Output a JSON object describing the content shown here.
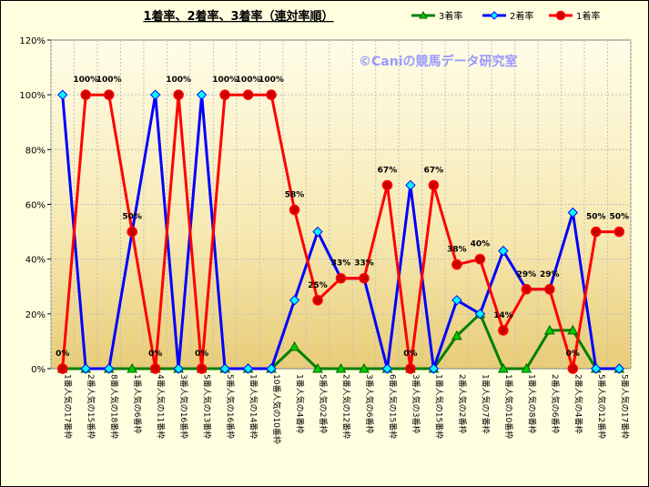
{
  "chart_data": {
    "type": "line",
    "title": "1着率、2着率、3着率（連対率順）",
    "watermark": "©Caniの競馬データ研究室",
    "ylim": [
      0,
      120
    ],
    "yticks": [
      "0%",
      "20%",
      "40%",
      "60%",
      "80%",
      "100%",
      "120%"
    ],
    "legend_position": "top-right",
    "grid": true,
    "categories": [
      "1番人気の17番枠",
      "2番人気の15番枠",
      "8番人気の18番枠",
      "1番人気の6番枠",
      "4番人気の11番枠",
      "3番人気の16番枠",
      "5番人気の13番枠",
      "5番人気の16番枠",
      "1番人気の14番枠",
      "10番人気の10番枠",
      "1番人気の4番枠",
      "5番人気の2番枠",
      "2番人気の12番枠",
      "3番人気の6番枠",
      "6番人気の15番枠",
      "3番人気の3番枠",
      "1番人気の15番枠",
      "2番人気の2番枠",
      "1番人気の7番枠",
      "1番人気の10番枠",
      "1番人気の8番枠",
      "2番人気の6番枠",
      "2番人気の4番枠",
      "5番人気の12番枠",
      "5番人気の17番枠"
    ],
    "series": [
      {
        "name": "3着率",
        "color": "#008000",
        "marker": "triangle",
        "marker_fill": "#00cc00",
        "values": [
          0,
          0,
          0,
          0,
          0,
          0,
          0,
          0,
          0,
          0,
          8,
          0,
          0,
          0,
          0,
          0,
          0,
          12,
          20,
          0,
          0,
          14,
          14,
          0,
          0
        ]
      },
      {
        "name": "2着率",
        "color": "#0000ff",
        "marker": "diamond",
        "marker_fill": "#00ffff",
        "values": [
          100,
          0,
          0,
          50,
          100,
          0,
          100,
          0,
          0,
          0,
          25,
          50,
          33,
          33,
          0,
          67,
          0,
          25,
          20,
          43,
          29,
          29,
          57,
          0,
          0
        ]
      },
      {
        "name": "1着率",
        "color": "#ff0000",
        "marker": "circle",
        "marker_fill": "#cc0000",
        "values": [
          0,
          100,
          100,
          50,
          0,
          100,
          0,
          100,
          100,
          100,
          58,
          25,
          33,
          33,
          67,
          0,
          67,
          38,
          40,
          14,
          29,
          29,
          0,
          50,
          50
        ]
      }
    ],
    "data_labels": [
      "0%",
      "100%",
      "100%",
      "50%",
      "0%",
      "100%",
      "0%",
      "100%",
      "100%",
      "100%",
      "58%",
      "25%",
      "33%",
      "33%",
      "67%",
      "0%",
      "67%",
      "38%",
      "40%",
      "14%",
      "29%",
      "29%",
      "0%",
      "50%",
      "50%"
    ]
  }
}
